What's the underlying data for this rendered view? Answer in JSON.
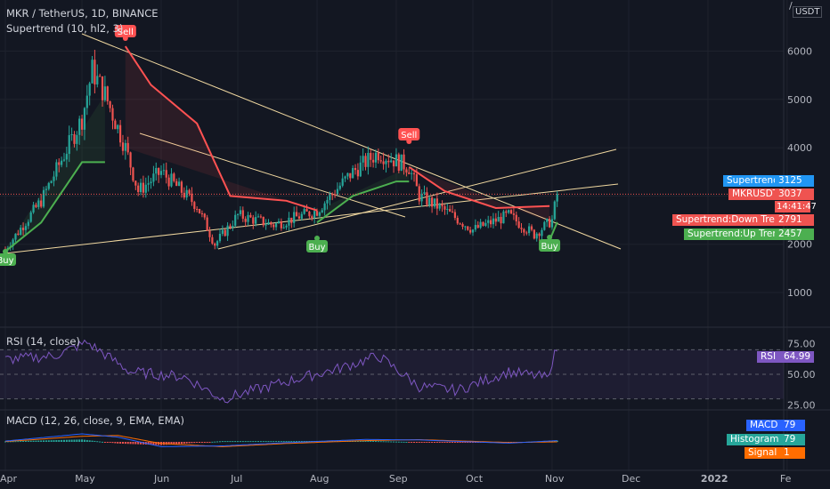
{
  "header": {
    "symbol_line": "MKR / TetherUS, 1D, BINANCE",
    "indicator_line": "Supertrend (10, hl2, 3)",
    "rsi_title": "RSI (14, close)",
    "macd_title": "MACD (12, 26, close, 9, EMA, EMA)"
  },
  "price_axis": {
    "unit_top": "/",
    "unit": "USDT",
    "ticks": [
      "6000",
      "5000",
      "4000",
      "3000",
      "2000",
      "1000"
    ]
  },
  "rsi_axis": {
    "ticks": [
      "75.00",
      "50.00",
      "25.00"
    ]
  },
  "time_axis": {
    "ticks": [
      "Apr",
      "May",
      "Jun",
      "Jul",
      "Aug",
      "Sep",
      "Oct",
      "Nov",
      "Dec",
      "2022",
      "Fe"
    ]
  },
  "tags": {
    "supertrend": {
      "label": "Supertrend",
      "value": "3125"
    },
    "last_price": {
      "label": "MKRUSDT",
      "value": "3037",
      "countdown": "14:41:47"
    },
    "down_trend": {
      "label": "Supertrend:Down Trend",
      "value": "2791"
    },
    "up_trend": {
      "label": "Supertrend:Up Trend",
      "value": "2457"
    },
    "rsi": {
      "label": "RSI",
      "value": "64.99"
    },
    "macd": {
      "label": "MACD",
      "value": "79"
    },
    "histogram": {
      "label": "Histogram",
      "value": "79"
    },
    "signal": {
      "label": "Signal",
      "value": "1"
    }
  },
  "signals": [
    {
      "type": "Buy",
      "label": "Buy",
      "date": "2021-04-01"
    },
    {
      "type": "Sell",
      "label": "Sell",
      "date": "2021-05-18"
    },
    {
      "type": "Buy",
      "label": "Buy",
      "date": "2021-08-01"
    },
    {
      "type": "Sell",
      "label": "Sell",
      "date": "2021-09-06"
    },
    {
      "type": "Buy",
      "label": "Buy",
      "date": "2021-10-31"
    }
  ],
  "colors": {
    "background": "#131722",
    "up": "#26a69a",
    "down": "#ef5350",
    "supertrend_up": "#4caf50",
    "supertrend_down": "#ff5252",
    "trendline": "#f0d8a0",
    "rsi_line": "#7e57c2",
    "macd_line": "#2962ff",
    "signal_line": "#ff6d00",
    "supertrend_tag": "#2196f3"
  },
  "chart_data": [
    {
      "type": "candlestick",
      "title": "MKR / TetherUS, 1D, BINANCE",
      "ylabel": "USDT",
      "ylim": [
        0,
        6900
      ],
      "x": [
        "2021-04-01",
        "2021-04-15",
        "2021-05-01",
        "2021-05-05",
        "2021-05-10",
        "2021-05-18",
        "2021-05-23",
        "2021-06-01",
        "2021-06-15",
        "2021-06-22",
        "2021-07-01",
        "2021-07-15",
        "2021-08-01",
        "2021-08-15",
        "2021-08-25",
        "2021-09-06",
        "2021-09-10",
        "2021-09-20",
        "2021-10-01",
        "2021-10-15",
        "2021-10-25",
        "2021-11-01",
        "2021-11-03"
      ],
      "close": [
        1900,
        2900,
        4600,
        5600,
        5100,
        4000,
        3100,
        3500,
        2800,
        2000,
        2600,
        2400,
        2700,
        3500,
        3900,
        3600,
        3000,
        2700,
        2300,
        2600,
        2200,
        2500,
        3037
      ],
      "supertrend_up": [
        {
          "x": "2021-04-01",
          "y": 1850
        },
        {
          "x": "2021-04-15",
          "y": 2450
        },
        {
          "x": "2021-05-01",
          "y": 3700
        },
        {
          "x": "2021-05-10",
          "y": 3700
        },
        {
          "x": "2021-08-01",
          "y": 2450
        },
        {
          "x": "2021-08-15",
          "y": 3000
        },
        {
          "x": "2021-09-01",
          "y": 3300
        },
        {
          "x": "2021-09-06",
          "y": 3300
        },
        {
          "x": "2021-10-31",
          "y": 2080
        },
        {
          "x": "2021-11-03",
          "y": 2457
        }
      ],
      "supertrend_down": [
        {
          "x": "2021-05-18",
          "y": 6100
        },
        {
          "x": "2021-05-28",
          "y": 5300
        },
        {
          "x": "2021-06-15",
          "y": 4500
        },
        {
          "x": "2021-06-28",
          "y": 3000
        },
        {
          "x": "2021-07-20",
          "y": 2900
        },
        {
          "x": "2021-08-01",
          "y": 2700
        },
        {
          "x": "2021-09-06",
          "y": 3600
        },
        {
          "x": "2021-09-20",
          "y": 3100
        },
        {
          "x": "2021-10-10",
          "y": 2750
        },
        {
          "x": "2021-10-31",
          "y": 2791
        }
      ]
    },
    {
      "type": "line",
      "title": "RSI (14, close)",
      "ylim": [
        25,
        80
      ],
      "x": [
        "2021-04-01",
        "2021-04-20",
        "2021-05-03",
        "2021-05-20",
        "2021-06-10",
        "2021-06-25",
        "2021-07-20",
        "2021-08-10",
        "2021-08-25",
        "2021-09-10",
        "2021-09-25",
        "2021-10-15",
        "2021-10-31",
        "2021-11-02",
        "2021-11-03"
      ],
      "y": [
        62,
        65,
        76,
        52,
        48,
        30,
        44,
        55,
        65,
        40,
        37,
        52,
        47,
        74,
        64.99
      ]
    },
    {
      "type": "line",
      "title": "MACD (12, 26, close, 9, EMA, EMA)",
      "x": [
        "2021-04-01",
        "2021-05-01",
        "2021-05-15",
        "2021-06-01",
        "2021-06-25",
        "2021-07-20",
        "2021-08-20",
        "2021-09-10",
        "2021-10-15",
        "2021-11-03"
      ],
      "series": [
        {
          "name": "MACD",
          "values": [
            50,
            500,
            300,
            -300,
            -250,
            -50,
            150,
            120,
            -80,
            79
          ]
        },
        {
          "name": "Signal",
          "values": [
            20,
            350,
            400,
            -100,
            -300,
            -100,
            80,
            140,
            -40,
            1
          ]
        },
        {
          "name": "Histogram",
          "values": [
            30,
            150,
            -100,
            -200,
            50,
            50,
            70,
            -20,
            -40,
            79
          ]
        }
      ]
    }
  ]
}
